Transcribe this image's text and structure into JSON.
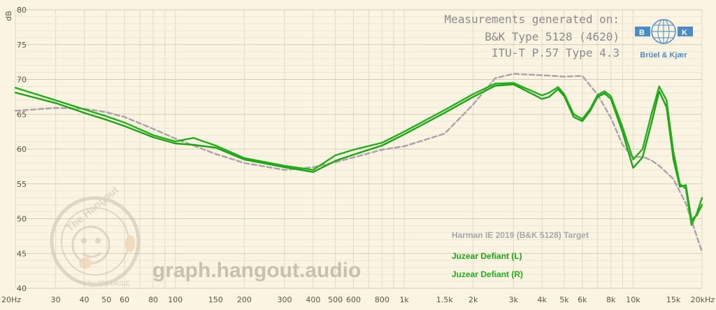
{
  "measurement_info": {
    "line1": "Measurements generated on:",
    "line2": "B&K Type 5128 (4620)",
    "line3": "ITU-T P.57 Type 4.3"
  },
  "bk_logo": {
    "letters": [
      "B",
      "K"
    ],
    "caption": "Brüel & Kjær"
  },
  "watermark": {
    "site": "graph.hangout.audio",
    "badge_top": "The Hangout",
    "badge_bottom": "by CRINACLE"
  },
  "colors": {
    "background": "#fbf4e3",
    "grid": "#e2d9c2",
    "target": "#a9a5a8",
    "left": "#1aa515",
    "right": "#21b01a"
  },
  "chart_data": {
    "type": "line",
    "x_scale": "log",
    "xlim": [
      20,
      20000
    ],
    "ylim": [
      40,
      80
    ],
    "ylabel": "dB",
    "xticks": [
      {
        "v": 20,
        "label": "20Hz"
      },
      {
        "v": 30,
        "label": "30"
      },
      {
        "v": 40,
        "label": "40"
      },
      {
        "v": 50,
        "label": "50"
      },
      {
        "v": 60,
        "label": "60"
      },
      {
        "v": 80,
        "label": "80"
      },
      {
        "v": 100,
        "label": "100"
      },
      {
        "v": 150,
        "label": "150"
      },
      {
        "v": 200,
        "label": "200"
      },
      {
        "v": 300,
        "label": "300"
      },
      {
        "v": 400,
        "label": "400"
      },
      {
        "v": 500,
        "label": "500"
      },
      {
        "v": 600,
        "label": "600"
      },
      {
        "v": 800,
        "label": "800"
      },
      {
        "v": 1000,
        "label": "1k"
      },
      {
        "v": 1500,
        "label": "1.5k"
      },
      {
        "v": 2000,
        "label": "2k"
      },
      {
        "v": 3000,
        "label": "3k"
      },
      {
        "v": 4000,
        "label": "4k"
      },
      {
        "v": 5000,
        "label": "5k"
      },
      {
        "v": 6000,
        "label": "6k"
      },
      {
        "v": 8000,
        "label": "8k"
      },
      {
        "v": 10000,
        "label": "10k"
      },
      {
        "v": 15000,
        "label": "15k"
      },
      {
        "v": 20000,
        "label": "20kHz"
      }
    ],
    "yticks": [
      40,
      45,
      50,
      55,
      60,
      65,
      70,
      75,
      80
    ],
    "grid": true,
    "legend_position": "bottom-right",
    "series": [
      {
        "name": "Harman IE 2019 (B&K 5128) Target",
        "style": "dashed",
        "color": "#a9a5a8",
        "points": [
          [
            20,
            65.5
          ],
          [
            30,
            65.9
          ],
          [
            40,
            65.8
          ],
          [
            50,
            65.3
          ],
          [
            60,
            64.6
          ],
          [
            80,
            62.9
          ],
          [
            100,
            61.5
          ],
          [
            150,
            59.3
          ],
          [
            200,
            58.0
          ],
          [
            300,
            57.0
          ],
          [
            400,
            57.4
          ],
          [
            500,
            58.1
          ],
          [
            600,
            58.8
          ],
          [
            800,
            59.9
          ],
          [
            1000,
            60.4
          ],
          [
            1500,
            62.2
          ],
          [
            2000,
            66.4
          ],
          [
            2500,
            70.2
          ],
          [
            3000,
            70.8
          ],
          [
            4000,
            70.6
          ],
          [
            5000,
            70.4
          ],
          [
            6000,
            70.5
          ],
          [
            7000,
            67.8
          ],
          [
            8000,
            64.5
          ],
          [
            9000,
            60.6
          ],
          [
            10000,
            58.8
          ],
          [
            11000,
            58.9
          ],
          [
            12000,
            58.4
          ],
          [
            13000,
            57.6
          ],
          [
            15000,
            55.7
          ],
          [
            17000,
            52.2
          ],
          [
            20000,
            45.2
          ]
        ]
      },
      {
        "name": "Juzear Defiant (L)",
        "style": "solid",
        "color": "#1aa515",
        "points": [
          [
            20,
            68.1
          ],
          [
            30,
            66.6
          ],
          [
            40,
            65.2
          ],
          [
            50,
            64.2
          ],
          [
            60,
            63.3
          ],
          [
            80,
            61.7
          ],
          [
            100,
            60.8
          ],
          [
            120,
            60.6
          ],
          [
            150,
            60.2
          ],
          [
            200,
            58.5
          ],
          [
            300,
            57.4
          ],
          [
            400,
            56.7
          ],
          [
            500,
            58.3
          ],
          [
            600,
            59.2
          ],
          [
            800,
            60.5
          ],
          [
            1000,
            62.1
          ],
          [
            1500,
            65.2
          ],
          [
            2000,
            67.5
          ],
          [
            2500,
            69.1
          ],
          [
            3000,
            69.3
          ],
          [
            4000,
            67.2
          ],
          [
            4300,
            67.5
          ],
          [
            4700,
            68.6
          ],
          [
            5000,
            67.6
          ],
          [
            5500,
            64.6
          ],
          [
            6000,
            64.0
          ],
          [
            6500,
            65.5
          ],
          [
            7000,
            67.5
          ],
          [
            7500,
            68.0
          ],
          [
            8000,
            67.2
          ],
          [
            9000,
            62.4
          ],
          [
            10000,
            57.3
          ],
          [
            11000,
            58.8
          ],
          [
            12000,
            63.6
          ],
          [
            13000,
            68.3
          ],
          [
            14000,
            66.0
          ],
          [
            15000,
            58.5
          ],
          [
            16000,
            54.6
          ],
          [
            17000,
            54.8
          ],
          [
            18000,
            49.8
          ],
          [
            19000,
            50.5
          ],
          [
            20000,
            52.0
          ]
        ]
      },
      {
        "name": "Juzear Defiant (R)",
        "style": "solid",
        "color": "#21b01a",
        "points": [
          [
            20,
            68.8
          ],
          [
            30,
            67.0
          ],
          [
            40,
            65.7
          ],
          [
            50,
            64.7
          ],
          [
            60,
            63.8
          ],
          [
            80,
            62.0
          ],
          [
            100,
            61.1
          ],
          [
            120,
            61.6
          ],
          [
            150,
            60.5
          ],
          [
            200,
            58.7
          ],
          [
            300,
            57.6
          ],
          [
            400,
            57.0
          ],
          [
            500,
            59.1
          ],
          [
            600,
            59.9
          ],
          [
            800,
            60.9
          ],
          [
            1000,
            62.5
          ],
          [
            1500,
            65.6
          ],
          [
            2000,
            67.9
          ],
          [
            2500,
            69.4
          ],
          [
            3000,
            69.5
          ],
          [
            4000,
            67.7
          ],
          [
            4300,
            68.1
          ],
          [
            4700,
            68.9
          ],
          [
            5000,
            67.9
          ],
          [
            5500,
            65.0
          ],
          [
            6000,
            64.3
          ],
          [
            6500,
            65.8
          ],
          [
            7000,
            67.8
          ],
          [
            7500,
            68.3
          ],
          [
            8000,
            67.6
          ],
          [
            9000,
            63.1
          ],
          [
            10000,
            58.5
          ],
          [
            11000,
            60.0
          ],
          [
            12000,
            64.9
          ],
          [
            13000,
            69.0
          ],
          [
            14000,
            67.0
          ],
          [
            15000,
            59.6
          ],
          [
            16000,
            55.0
          ],
          [
            17000,
            54.3
          ],
          [
            18000,
            49.1
          ],
          [
            19000,
            50.8
          ],
          [
            20000,
            53.0
          ]
        ]
      }
    ]
  }
}
